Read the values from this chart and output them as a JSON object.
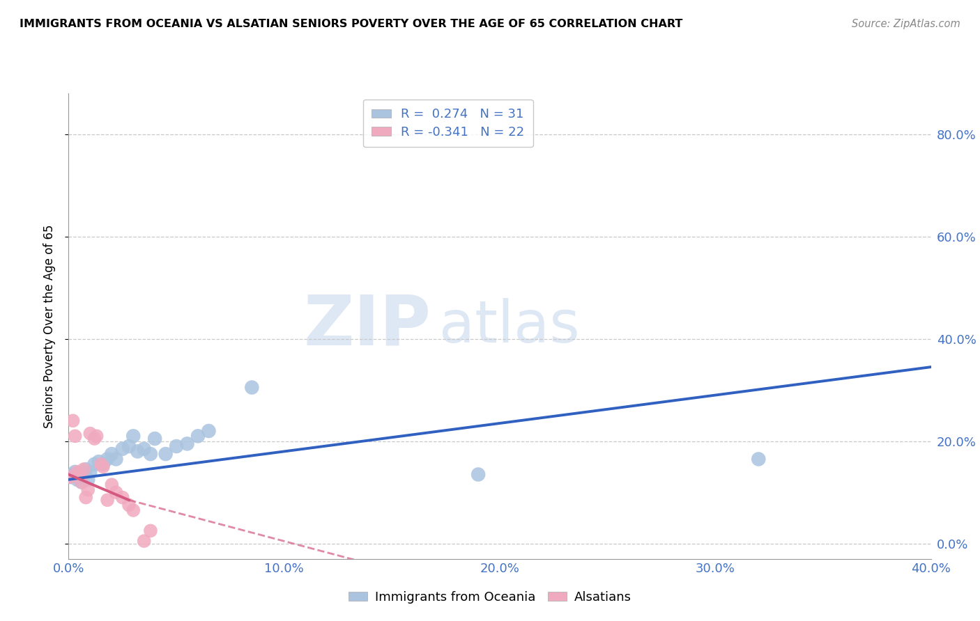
{
  "title": "IMMIGRANTS FROM OCEANIA VS ALSATIAN SENIORS POVERTY OVER THE AGE OF 65 CORRELATION CHART",
  "source": "Source: ZipAtlas.com",
  "ylabel": "Seniors Poverty Over the Age of 65",
  "xlim": [
    0.0,
    0.4
  ],
  "ylim": [
    -0.03,
    0.88
  ],
  "yticks": [
    0.0,
    0.2,
    0.4,
    0.6,
    0.8
  ],
  "xticks": [
    0.0,
    0.1,
    0.2,
    0.3,
    0.4
  ],
  "r_oceania": 0.274,
  "n_oceania": 31,
  "r_alsatian": -0.341,
  "n_alsatian": 22,
  "color_oceania": "#aac4e0",
  "color_alsatian": "#f0aabf",
  "line_color_oceania": "#3060c0",
  "line_color_alsatian": "#d45880",
  "watermark_zip": "ZIP",
  "watermark_atlas": "atlas",
  "oceania_scatter": [
    [
      0.001,
      0.13
    ],
    [
      0.002,
      0.135
    ],
    [
      0.003,
      0.14
    ],
    [
      0.004,
      0.125
    ],
    [
      0.005,
      0.13
    ],
    [
      0.006,
      0.12
    ],
    [
      0.007,
      0.135
    ],
    [
      0.008,
      0.145
    ],
    [
      0.009,
      0.125
    ],
    [
      0.01,
      0.14
    ],
    [
      0.012,
      0.155
    ],
    [
      0.014,
      0.16
    ],
    [
      0.016,
      0.155
    ],
    [
      0.018,
      0.165
    ],
    [
      0.02,
      0.175
    ],
    [
      0.022,
      0.165
    ],
    [
      0.025,
      0.185
    ],
    [
      0.028,
      0.19
    ],
    [
      0.03,
      0.21
    ],
    [
      0.032,
      0.18
    ],
    [
      0.035,
      0.185
    ],
    [
      0.038,
      0.175
    ],
    [
      0.04,
      0.205
    ],
    [
      0.045,
      0.175
    ],
    [
      0.05,
      0.19
    ],
    [
      0.055,
      0.195
    ],
    [
      0.06,
      0.21
    ],
    [
      0.065,
      0.22
    ],
    [
      0.085,
      0.305
    ],
    [
      0.19,
      0.135
    ],
    [
      0.32,
      0.165
    ]
  ],
  "alsatian_scatter": [
    [
      0.001,
      0.13
    ],
    [
      0.002,
      0.24
    ],
    [
      0.003,
      0.21
    ],
    [
      0.004,
      0.14
    ],
    [
      0.005,
      0.135
    ],
    [
      0.006,
      0.12
    ],
    [
      0.007,
      0.145
    ],
    [
      0.008,
      0.09
    ],
    [
      0.009,
      0.105
    ],
    [
      0.01,
      0.215
    ],
    [
      0.012,
      0.205
    ],
    [
      0.013,
      0.21
    ],
    [
      0.015,
      0.155
    ],
    [
      0.016,
      0.15
    ],
    [
      0.018,
      0.085
    ],
    [
      0.02,
      0.115
    ],
    [
      0.022,
      0.1
    ],
    [
      0.025,
      0.09
    ],
    [
      0.028,
      0.075
    ],
    [
      0.03,
      0.065
    ],
    [
      0.035,
      0.005
    ],
    [
      0.038,
      0.025
    ]
  ],
  "oceania_line": [
    [
      0.0,
      0.125
    ],
    [
      0.4,
      0.345
    ]
  ],
  "alsatian_line_solid": [
    [
      0.0,
      0.135
    ],
    [
      0.028,
      0.085
    ]
  ],
  "alsatian_line_dash": [
    [
      0.028,
      0.085
    ],
    [
      0.14,
      -0.04
    ]
  ]
}
